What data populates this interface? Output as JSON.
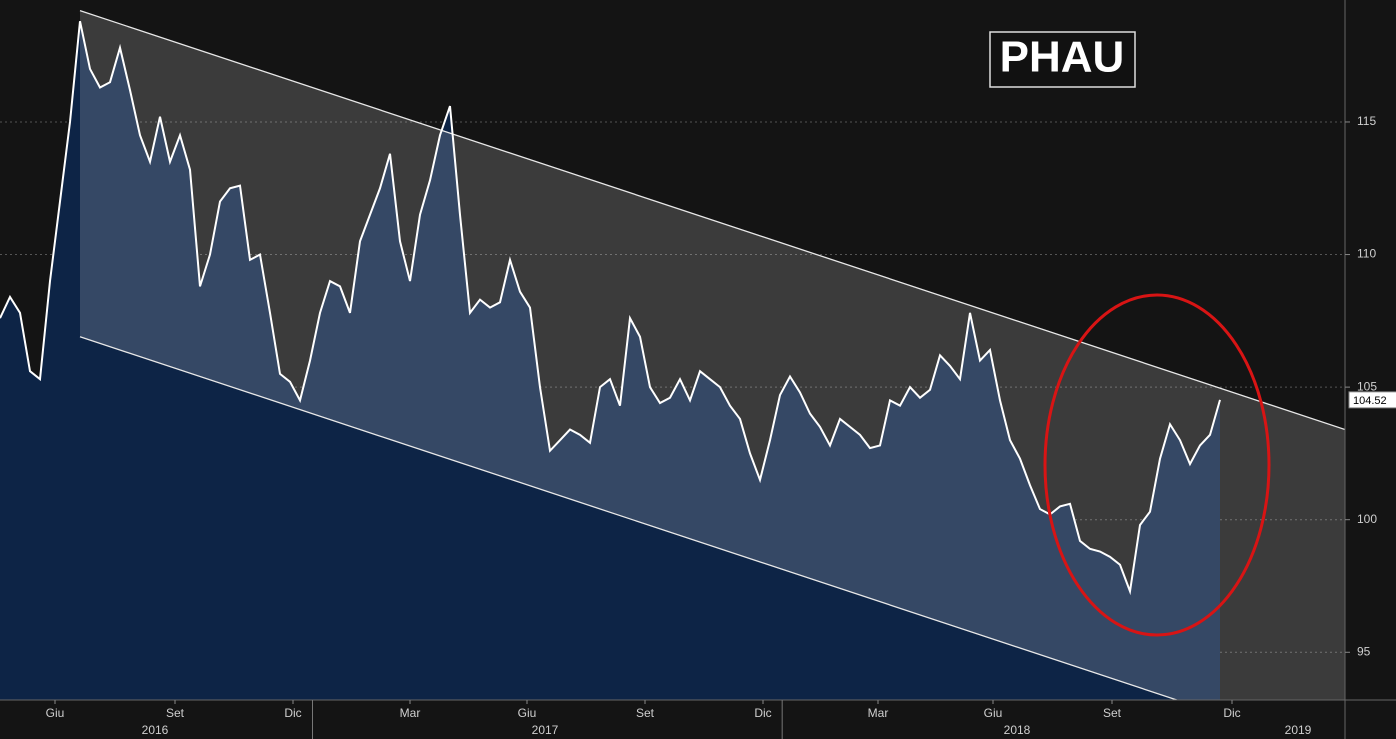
{
  "chart_data": {
    "type": "line",
    "title": "PHAU",
    "series": [
      {
        "name": "PHAU",
        "color": "#ffffff",
        "values": [
          107.6,
          108.4,
          107.8,
          105.6,
          105.3,
          109,
          112,
          115,
          118.8,
          117,
          116.3,
          116.5,
          117.8,
          116.2,
          114.5,
          113.5,
          115.2,
          113.5,
          114.5,
          113.2,
          108.8,
          110,
          112,
          112.5,
          112.6,
          109.8,
          110,
          107.8,
          105.5,
          105.2,
          104.5,
          106,
          107.8,
          109,
          108.8,
          107.8,
          110.5,
          111.5,
          112.5,
          113.8,
          110.5,
          109,
          111.5,
          112.8,
          114.5,
          115.6,
          111.5,
          107.8,
          108.3,
          108,
          108.2,
          109.8,
          108.6,
          108,
          105,
          102.6,
          103,
          103.4,
          103.2,
          102.9,
          105,
          105.3,
          104.3,
          107.6,
          106.9,
          105,
          104.4,
          104.6,
          105.3,
          104.5,
          105.6,
          105.3,
          105,
          104.3,
          103.8,
          102.5,
          101.5,
          103,
          104.7,
          105.4,
          104.8,
          104,
          103.5,
          102.8,
          103.8,
          103.5,
          103.2,
          102.7,
          102.8,
          104.5,
          104.3,
          105,
          104.6,
          104.9,
          106.2,
          105.8,
          105.3,
          107.8,
          106,
          106.4,
          104.5,
          103,
          102.3,
          101.3,
          100.4,
          100.2,
          100.5,
          100.6,
          99.2,
          98.9,
          98.8,
          98.6,
          98.3,
          97.3,
          99.8,
          100.3,
          102.3,
          103.6,
          103,
          102.1,
          102.8,
          103.2,
          104.52
        ]
      }
    ],
    "xlim": [
      0,
      134.5
    ],
    "ylim": [
      93.2,
      119.6
    ],
    "yticks": [
      95,
      100,
      105,
      110,
      115
    ],
    "xticks": [
      {
        "value": 5.5,
        "label": "Giu"
      },
      {
        "value": 17.5,
        "label": "Set"
      },
      {
        "value": 29.3,
        "label": "Dic"
      },
      {
        "value": 41,
        "label": "Mar"
      },
      {
        "value": 52.7,
        "label": "Giu"
      },
      {
        "value": 64.5,
        "label": "Set"
      },
      {
        "value": 76.3,
        "label": "Dic"
      },
      {
        "value": 87.8,
        "label": "Mar"
      },
      {
        "value": 99.3,
        "label": "Giu"
      },
      {
        "value": 111.2,
        "label": "Set"
      },
      {
        "value": 123.2,
        "label": "Dic"
      }
    ],
    "year_labels": [
      {
        "value": 15.5,
        "label": "2016"
      },
      {
        "value": 54.5,
        "label": "2017"
      },
      {
        "value": 101.7,
        "label": "2018"
      },
      {
        "value": 129.8,
        "label": "2019"
      }
    ],
    "channel": {
      "upper": [
        [
          8,
          119.2
        ],
        [
          134.5,
          103.4
        ]
      ],
      "lower": [
        [
          8,
          106.9
        ],
        [
          134.5,
          91.1
        ]
      ]
    },
    "grid": true
  }
}
